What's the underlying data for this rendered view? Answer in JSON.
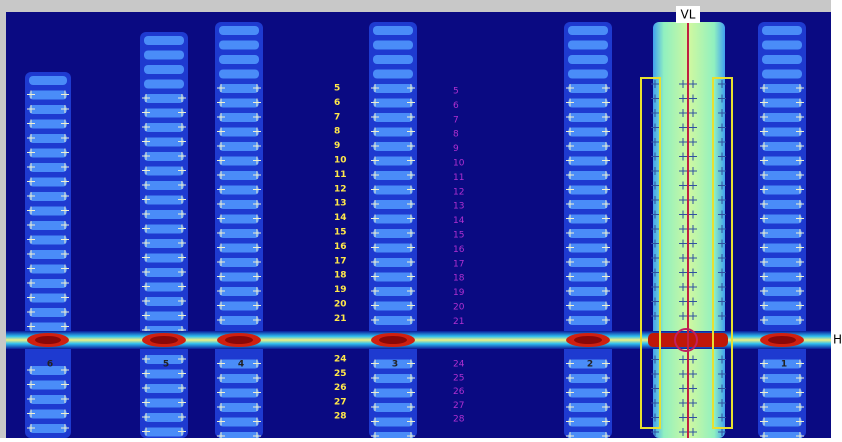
{
  "top_label": "VL",
  "right_label": "H",
  "column_labels": [
    "6",
    "5",
    "4",
    "3",
    "2",
    "1"
  ],
  "yellow_upper": [
    5,
    6,
    7,
    8,
    9,
    10,
    11,
    12,
    13,
    14,
    15,
    16,
    17,
    18,
    19,
    20,
    21
  ],
  "yellow_lower": [
    24,
    25,
    26,
    27,
    28
  ],
  "magenta_upper": [
    5,
    6,
    7,
    8,
    9,
    10,
    11,
    12,
    13,
    14,
    15,
    16,
    17,
    18,
    19,
    20,
    21
  ],
  "magenta_lower": [
    24,
    25,
    26,
    27,
    28
  ]
}
